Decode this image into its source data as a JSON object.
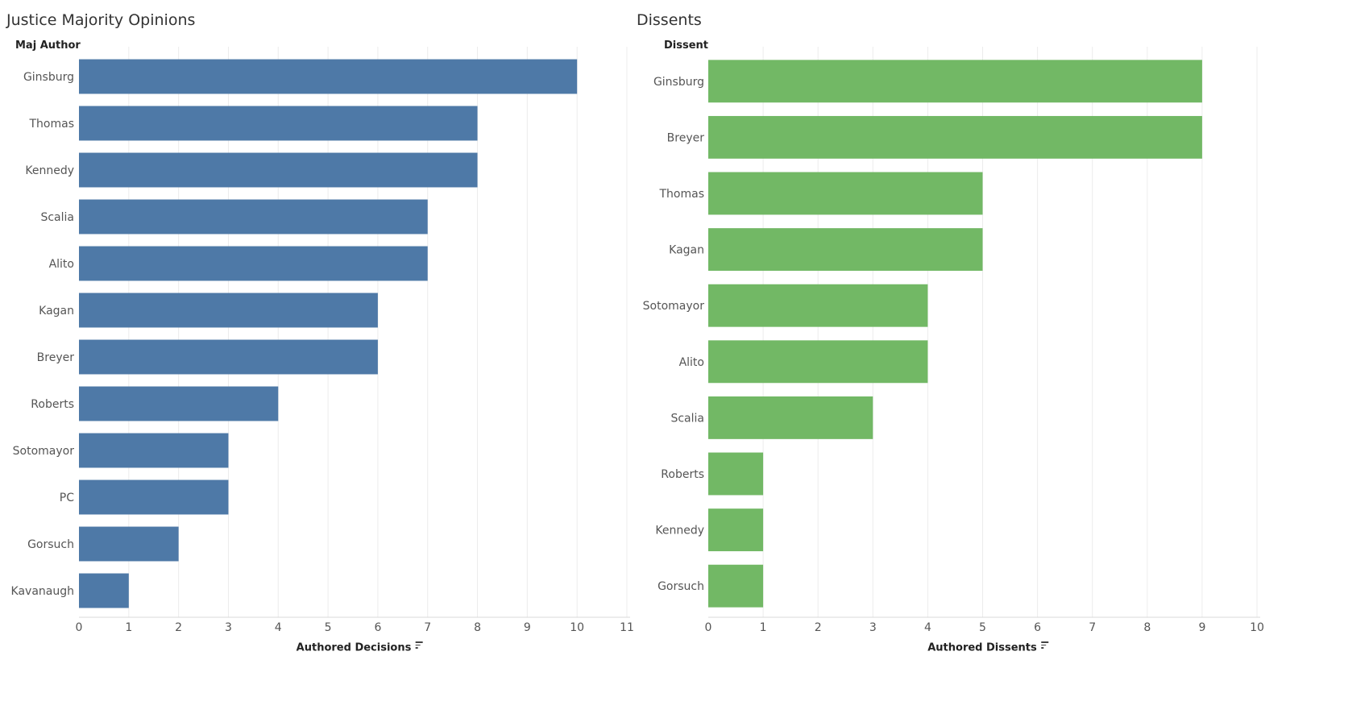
{
  "chart_data": [
    {
      "type": "bar",
      "orientation": "horizontal",
      "title": "Justice Majority Opinions",
      "row_header": "Maj Author",
      "xlabel": "Authored Decisions",
      "color": "#4e79a7",
      "categories": [
        "Ginsburg",
        "Thomas",
        "Kennedy",
        "Scalia",
        "Alito",
        "Kagan",
        "Breyer",
        "Roberts",
        "Sotomayor",
        "PC",
        "Gorsuch",
        "Kavanaugh"
      ],
      "values": [
        10,
        8,
        8,
        7,
        7,
        6,
        6,
        4,
        3,
        3,
        2,
        1
      ],
      "xlim": [
        0,
        11
      ],
      "xticks": [
        0,
        1,
        2,
        3,
        4,
        5,
        6,
        7,
        8,
        9,
        10,
        11
      ],
      "grid": true
    },
    {
      "type": "bar",
      "orientation": "horizontal",
      "title": "Dissents",
      "row_header": "Dissent",
      "xlabel": "Authored Dissents",
      "color": "#72b865",
      "categories": [
        "Ginsburg",
        "Breyer",
        "Thomas",
        "Kagan",
        "Sotomayor",
        "Alito",
        "Scalia",
        "Roberts",
        "Kennedy",
        "Gorsuch"
      ],
      "values": [
        9,
        9,
        5,
        5,
        4,
        4,
        3,
        1,
        1,
        1
      ],
      "xlim": [
        0,
        10
      ],
      "xticks": [
        0,
        1,
        2,
        3,
        4,
        5,
        6,
        7,
        8,
        9,
        10
      ],
      "grid": true
    }
  ]
}
